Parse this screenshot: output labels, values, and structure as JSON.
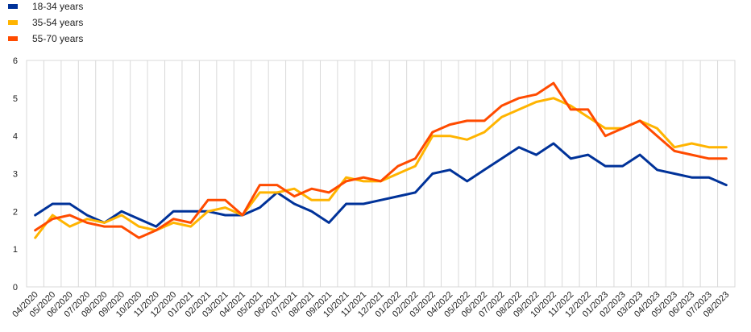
{
  "chart_data": {
    "type": "line",
    "title": "",
    "xlabel": "",
    "ylabel": "",
    "ylim": [
      0,
      6
    ],
    "yticks": [
      0,
      1,
      2,
      3,
      4,
      5,
      6
    ],
    "grid": "vertical-only-plot-border",
    "legend_position": "top-left",
    "x": [
      "04/2020",
      "05/2020",
      "06/2020",
      "07/2020",
      "08/2020",
      "09/2020",
      "10/2020",
      "11/2020",
      "12/2020",
      "01/2021",
      "02/2021",
      "03/2021",
      "04/2021",
      "05/2021",
      "06/2021",
      "07/2021",
      "08/2021",
      "09/2021",
      "10/2021",
      "11/2021",
      "12/2021",
      "01/2022",
      "02/2022",
      "03/2022",
      "04/2022",
      "05/2022",
      "06/2022",
      "07/2022",
      "08/2022",
      "09/2022",
      "10/2022",
      "11/2022",
      "12/2022",
      "01/2023",
      "02/2023",
      "03/2023",
      "04/2023",
      "05/2023",
      "06/2023",
      "07/2023",
      "08/2023"
    ],
    "series": [
      {
        "name": "18-34 years",
        "color": "#003299",
        "values": [
          1.9,
          2.2,
          2.2,
          1.9,
          1.7,
          2.0,
          1.8,
          1.6,
          2.0,
          2.0,
          2.0,
          1.9,
          1.9,
          2.1,
          2.5,
          2.2,
          2.0,
          1.7,
          2.2,
          2.2,
          2.3,
          2.4,
          2.5,
          3.0,
          3.1,
          2.8,
          3.1,
          3.4,
          3.7,
          3.5,
          3.8,
          3.4,
          3.5,
          3.2,
          3.2,
          3.5,
          3.1,
          3.0,
          2.9,
          2.9,
          2.7
        ]
      },
      {
        "name": "35-54 years",
        "color": "#FFB400",
        "values": [
          1.3,
          1.9,
          1.6,
          1.8,
          1.7,
          1.9,
          1.6,
          1.5,
          1.7,
          1.6,
          2.0,
          2.1,
          1.9,
          2.5,
          2.5,
          2.6,
          2.3,
          2.3,
          2.9,
          2.8,
          2.8,
          3.0,
          3.2,
          4.0,
          4.0,
          3.9,
          4.1,
          4.5,
          4.7,
          4.9,
          5.0,
          4.8,
          4.5,
          4.2,
          4.2,
          4.4,
          4.2,
          3.7,
          3.8,
          3.7,
          3.7
        ]
      },
      {
        "name": "55-70 years",
        "color": "#FF4B00",
        "values": [
          1.5,
          1.8,
          1.9,
          1.7,
          1.6,
          1.6,
          1.3,
          1.5,
          1.8,
          1.7,
          2.3,
          2.3,
          1.9,
          2.7,
          2.7,
          2.4,
          2.6,
          2.5,
          2.8,
          2.9,
          2.8,
          3.2,
          3.4,
          4.1,
          4.3,
          4.4,
          4.4,
          4.8,
          5.0,
          5.1,
          5.4,
          4.7,
          4.7,
          4.0,
          4.2,
          4.4,
          4.0,
          3.6,
          3.5,
          3.4,
          3.4
        ]
      }
    ]
  }
}
